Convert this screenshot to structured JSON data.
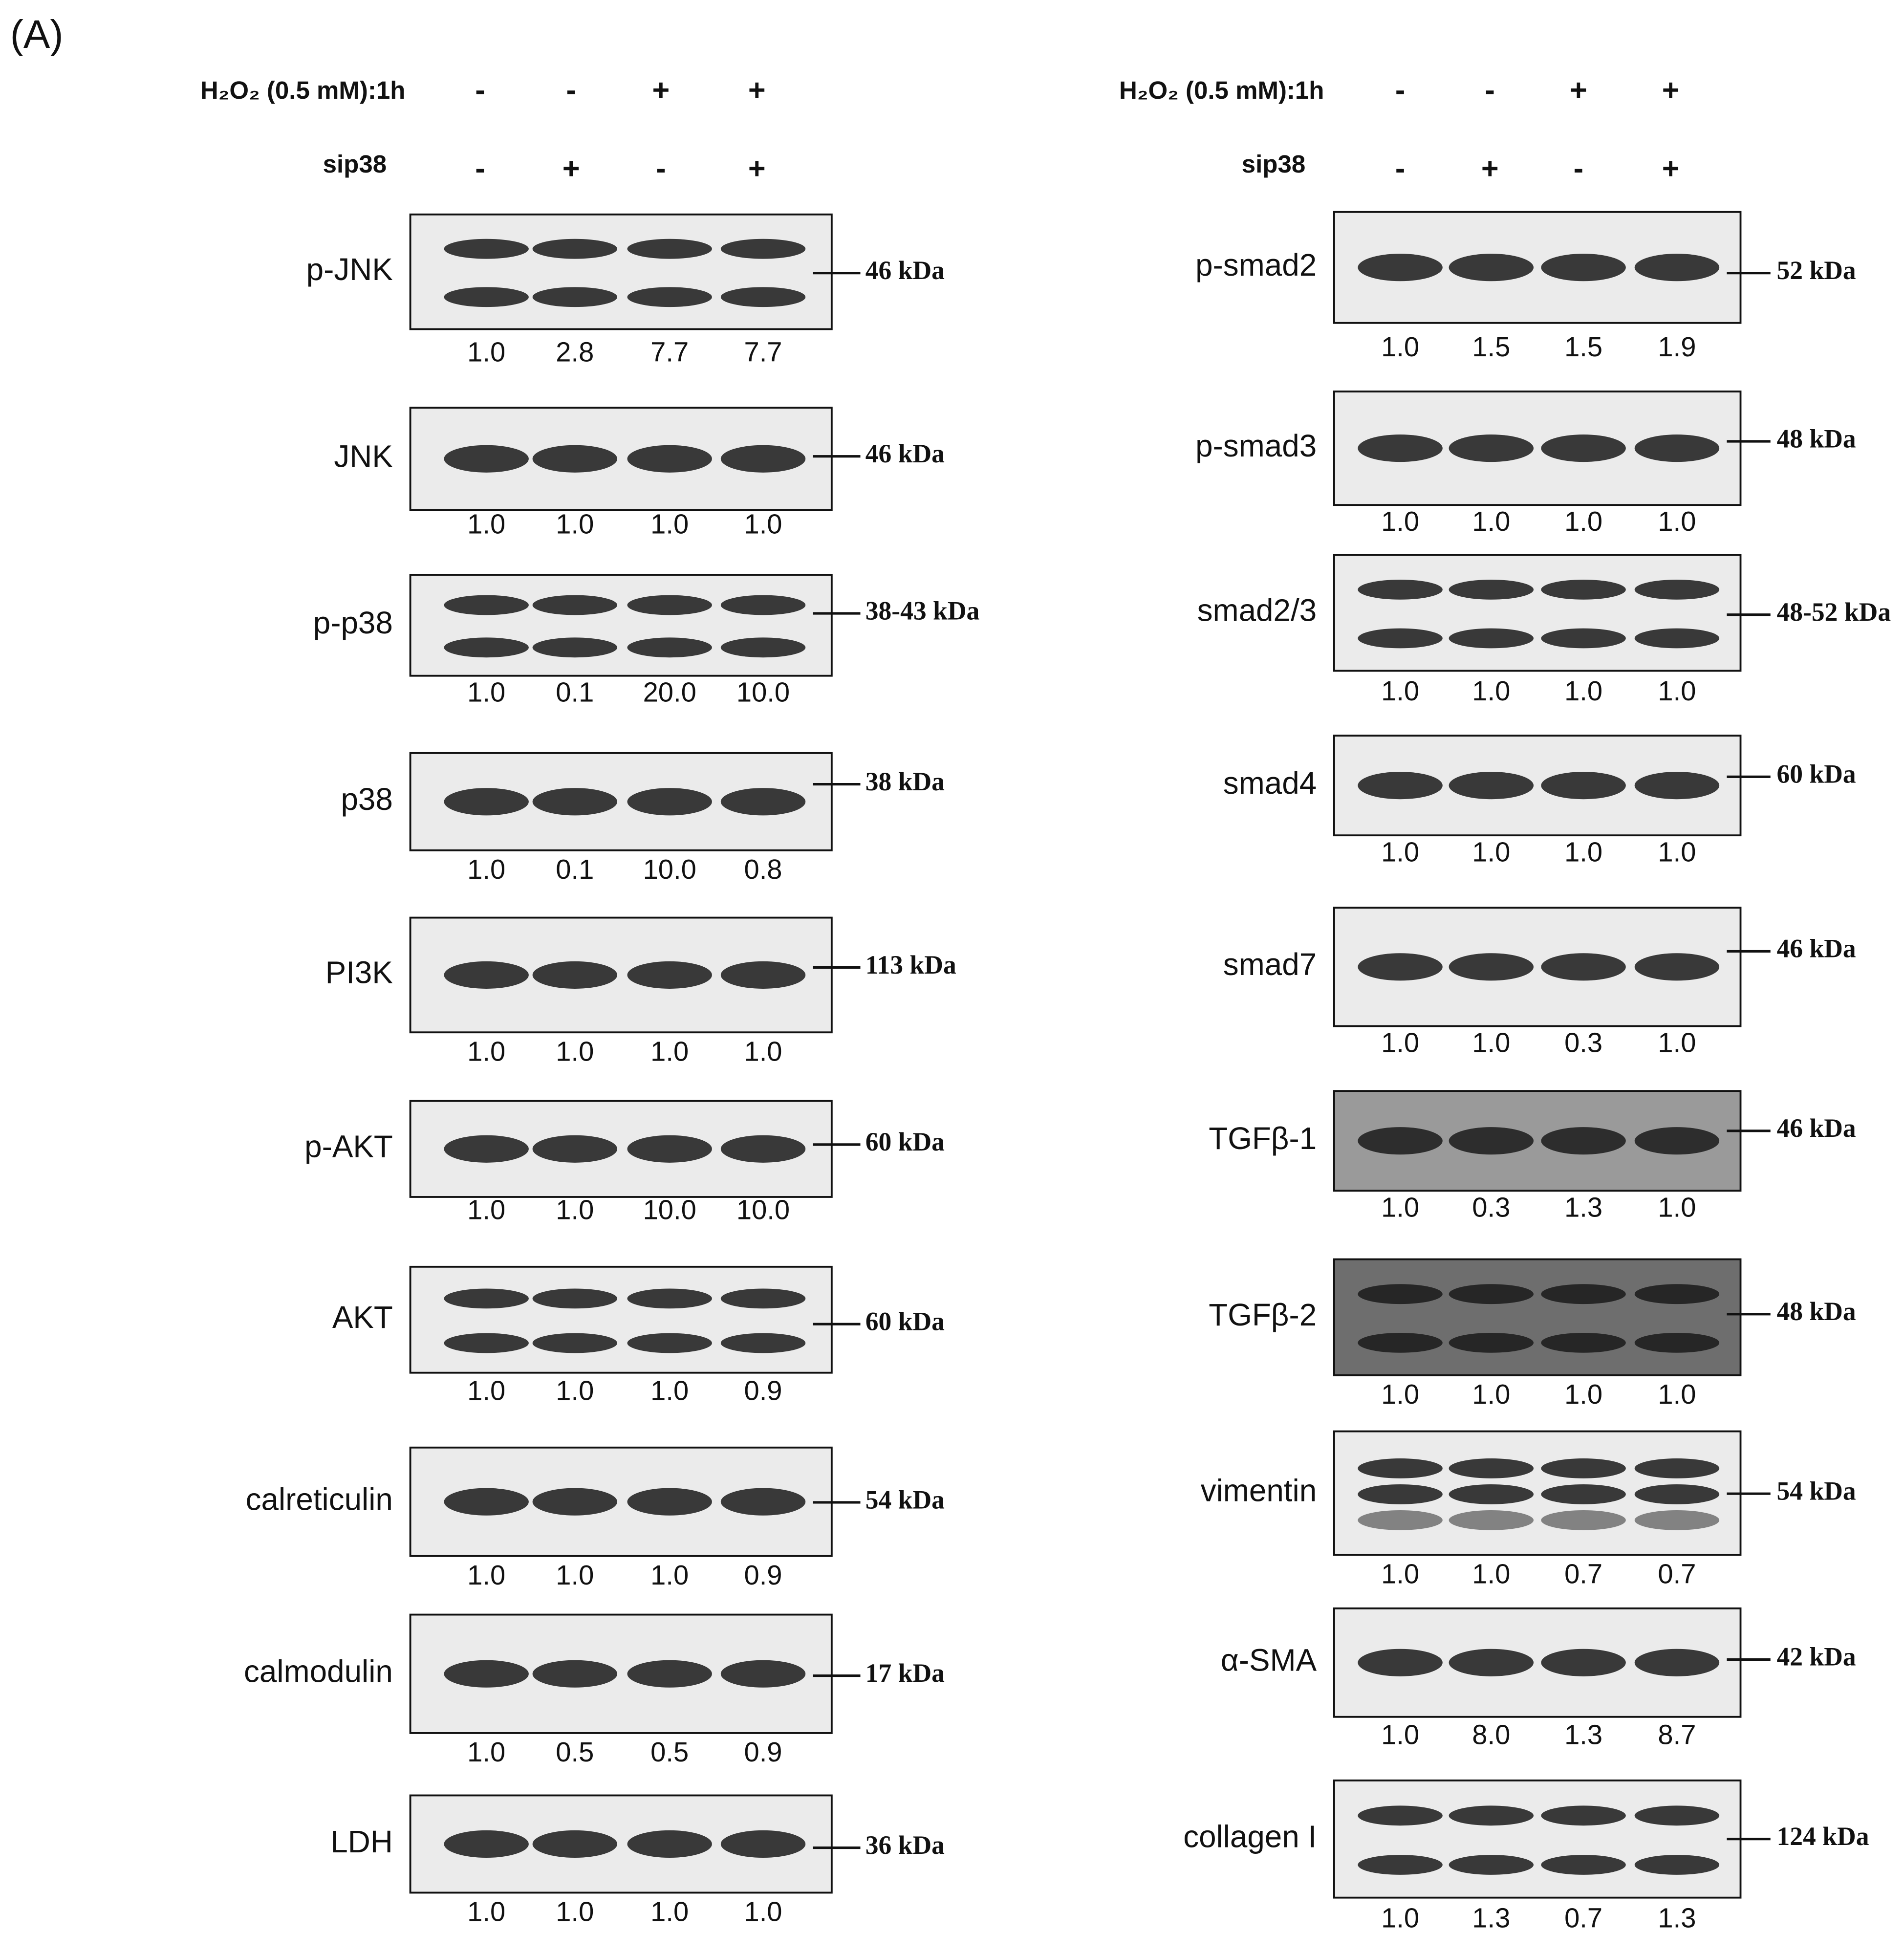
{
  "panel_label": "(A)",
  "left": {
    "header": {
      "treatment_label": "H₂O₂ (0.5 mM):1h",
      "treatment_signs": [
        "-",
        "-",
        "+",
        "+"
      ],
      "sirna_label": "sip38",
      "sirna_signs": [
        "-",
        "+",
        "-",
        "+"
      ]
    },
    "blots": [
      {
        "name": "p-JNK",
        "size": "46 kDa",
        "quantification": [
          "1.0",
          "2.8",
          "7.7",
          "7.7"
        ]
      },
      {
        "name": "JNK",
        "size": "46 kDa",
        "quantification": [
          "1.0",
          "1.0",
          "1.0",
          "1.0"
        ]
      },
      {
        "name": "p-p38",
        "size": "38-43 kDa",
        "quantification": [
          "1.0",
          "0.1",
          "20.0",
          "10.0"
        ]
      },
      {
        "name": "p38",
        "size": "38 kDa",
        "quantification": [
          "1.0",
          "0.1",
          "10.0",
          "0.8"
        ]
      },
      {
        "name": "PI3K",
        "size": "113 kDa",
        "quantification": [
          "1.0",
          "1.0",
          "1.0",
          "1.0"
        ]
      },
      {
        "name": "p-AKT",
        "size": "60 kDa",
        "quantification": [
          "1.0",
          "1.0",
          "10.0",
          "10.0"
        ]
      },
      {
        "name": "AKT",
        "size": "60 kDa",
        "quantification": [
          "1.0",
          "1.0",
          "1.0",
          "0.9"
        ]
      },
      {
        "name": "calreticulin",
        "size": "54 kDa",
        "quantification": [
          "1.0",
          "1.0",
          "1.0",
          "0.9"
        ]
      },
      {
        "name": "calmodulin",
        "size": "17 kDa",
        "quantification": [
          "1.0",
          "0.5",
          "0.5",
          "0.9"
        ]
      },
      {
        "name": "LDH",
        "size": "36 kDa",
        "quantification": [
          "1.0",
          "1.0",
          "1.0",
          "1.0"
        ]
      }
    ]
  },
  "right": {
    "header": {
      "treatment_label": "H₂O₂ (0.5 mM):1h",
      "treatment_signs": [
        "-",
        "-",
        "+",
        "+"
      ],
      "sirna_label": "sip38",
      "sirna_signs": [
        "-",
        "+",
        "-",
        "+"
      ]
    },
    "blots": [
      {
        "name": "p-smad2",
        "size": "52 kDa",
        "quantification": [
          "1.0",
          "1.5",
          "1.5",
          "1.9"
        ]
      },
      {
        "name": "p-smad3",
        "size": "48 kDa",
        "quantification": [
          "1.0",
          "1.0",
          "1.0",
          "1.0"
        ]
      },
      {
        "name": "smad2/3",
        "size": "48-52 kDa",
        "quantification": [
          "1.0",
          "1.0",
          "1.0",
          "1.0"
        ]
      },
      {
        "name": "smad4",
        "size": "60 kDa",
        "quantification": [
          "1.0",
          "1.0",
          "1.0",
          "1.0"
        ]
      },
      {
        "name": "smad7",
        "size": "46 kDa",
        "quantification": [
          "1.0",
          "1.0",
          "0.3",
          "1.0"
        ]
      },
      {
        "name": "TGFβ-1",
        "size": "46 kDa",
        "quantification": [
          "1.0",
          "0.3",
          "1.3",
          "1.0"
        ]
      },
      {
        "name": "TGFβ-2",
        "size": "48 kDa",
        "quantification": [
          "1.0",
          "1.0",
          "1.0",
          "1.0"
        ]
      },
      {
        "name": "vimentin",
        "size": "54 kDa",
        "quantification": [
          "1.0",
          "1.0",
          "0.7",
          "0.7"
        ]
      },
      {
        "name": "α-SMA",
        "size": "42 kDa",
        "quantification": [
          "1.0",
          "8.0",
          "1.3",
          "8.7"
        ]
      },
      {
        "name": "collagen I",
        "size": "124 kDa",
        "quantification": [
          "1.0",
          "1.3",
          "0.7",
          "1.3"
        ]
      }
    ]
  }
}
